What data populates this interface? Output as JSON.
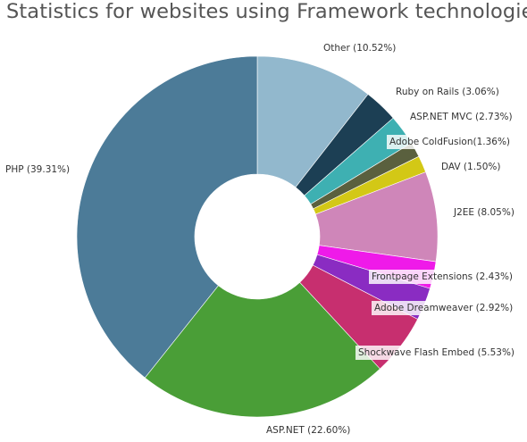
{
  "chart_data": {
    "type": "pie",
    "variant": "donut",
    "title": "Statistics for websites using Framework technologies",
    "slices": [
      {
        "label": "Other (10.52%)",
        "value": 10.52,
        "color": "#92b8cd"
      },
      {
        "label": "Ruby on Rails (3.06%)",
        "value": 3.06,
        "color": "#1c3f54"
      },
      {
        "label": "ASP.NET MVC (2.73%)",
        "value": 2.73,
        "color": "#3eb0b2"
      },
      {
        "label": "Adobe ColdFusion(1.36%)",
        "value": 1.36,
        "color": "#5a603e"
      },
      {
        "label": "DAV (1.50%)",
        "value": 1.5,
        "color": "#d3c816"
      },
      {
        "label": "J2EE (8.05%)",
        "value": 8.05,
        "color": "#cf86b9"
      },
      {
        "label": "Frontpage Extensions (2.43%)",
        "value": 2.43,
        "color": "#ef1ae9"
      },
      {
        "label": "Adobe Dreamweaver (2.92%)",
        "value": 2.92,
        "color": "#8a2cc2"
      },
      {
        "label": "Shockwave Flash Embed (5.53%)",
        "value": 5.53,
        "color": "#c72f6f"
      },
      {
        "label": "ASP.NET (22.60%)",
        "value": 22.6,
        "color": "#4a9e37"
      },
      {
        "label": "PHP (39.31%)",
        "value": 39.31,
        "color": "#4c7b98"
      }
    ],
    "legend": "none"
  }
}
